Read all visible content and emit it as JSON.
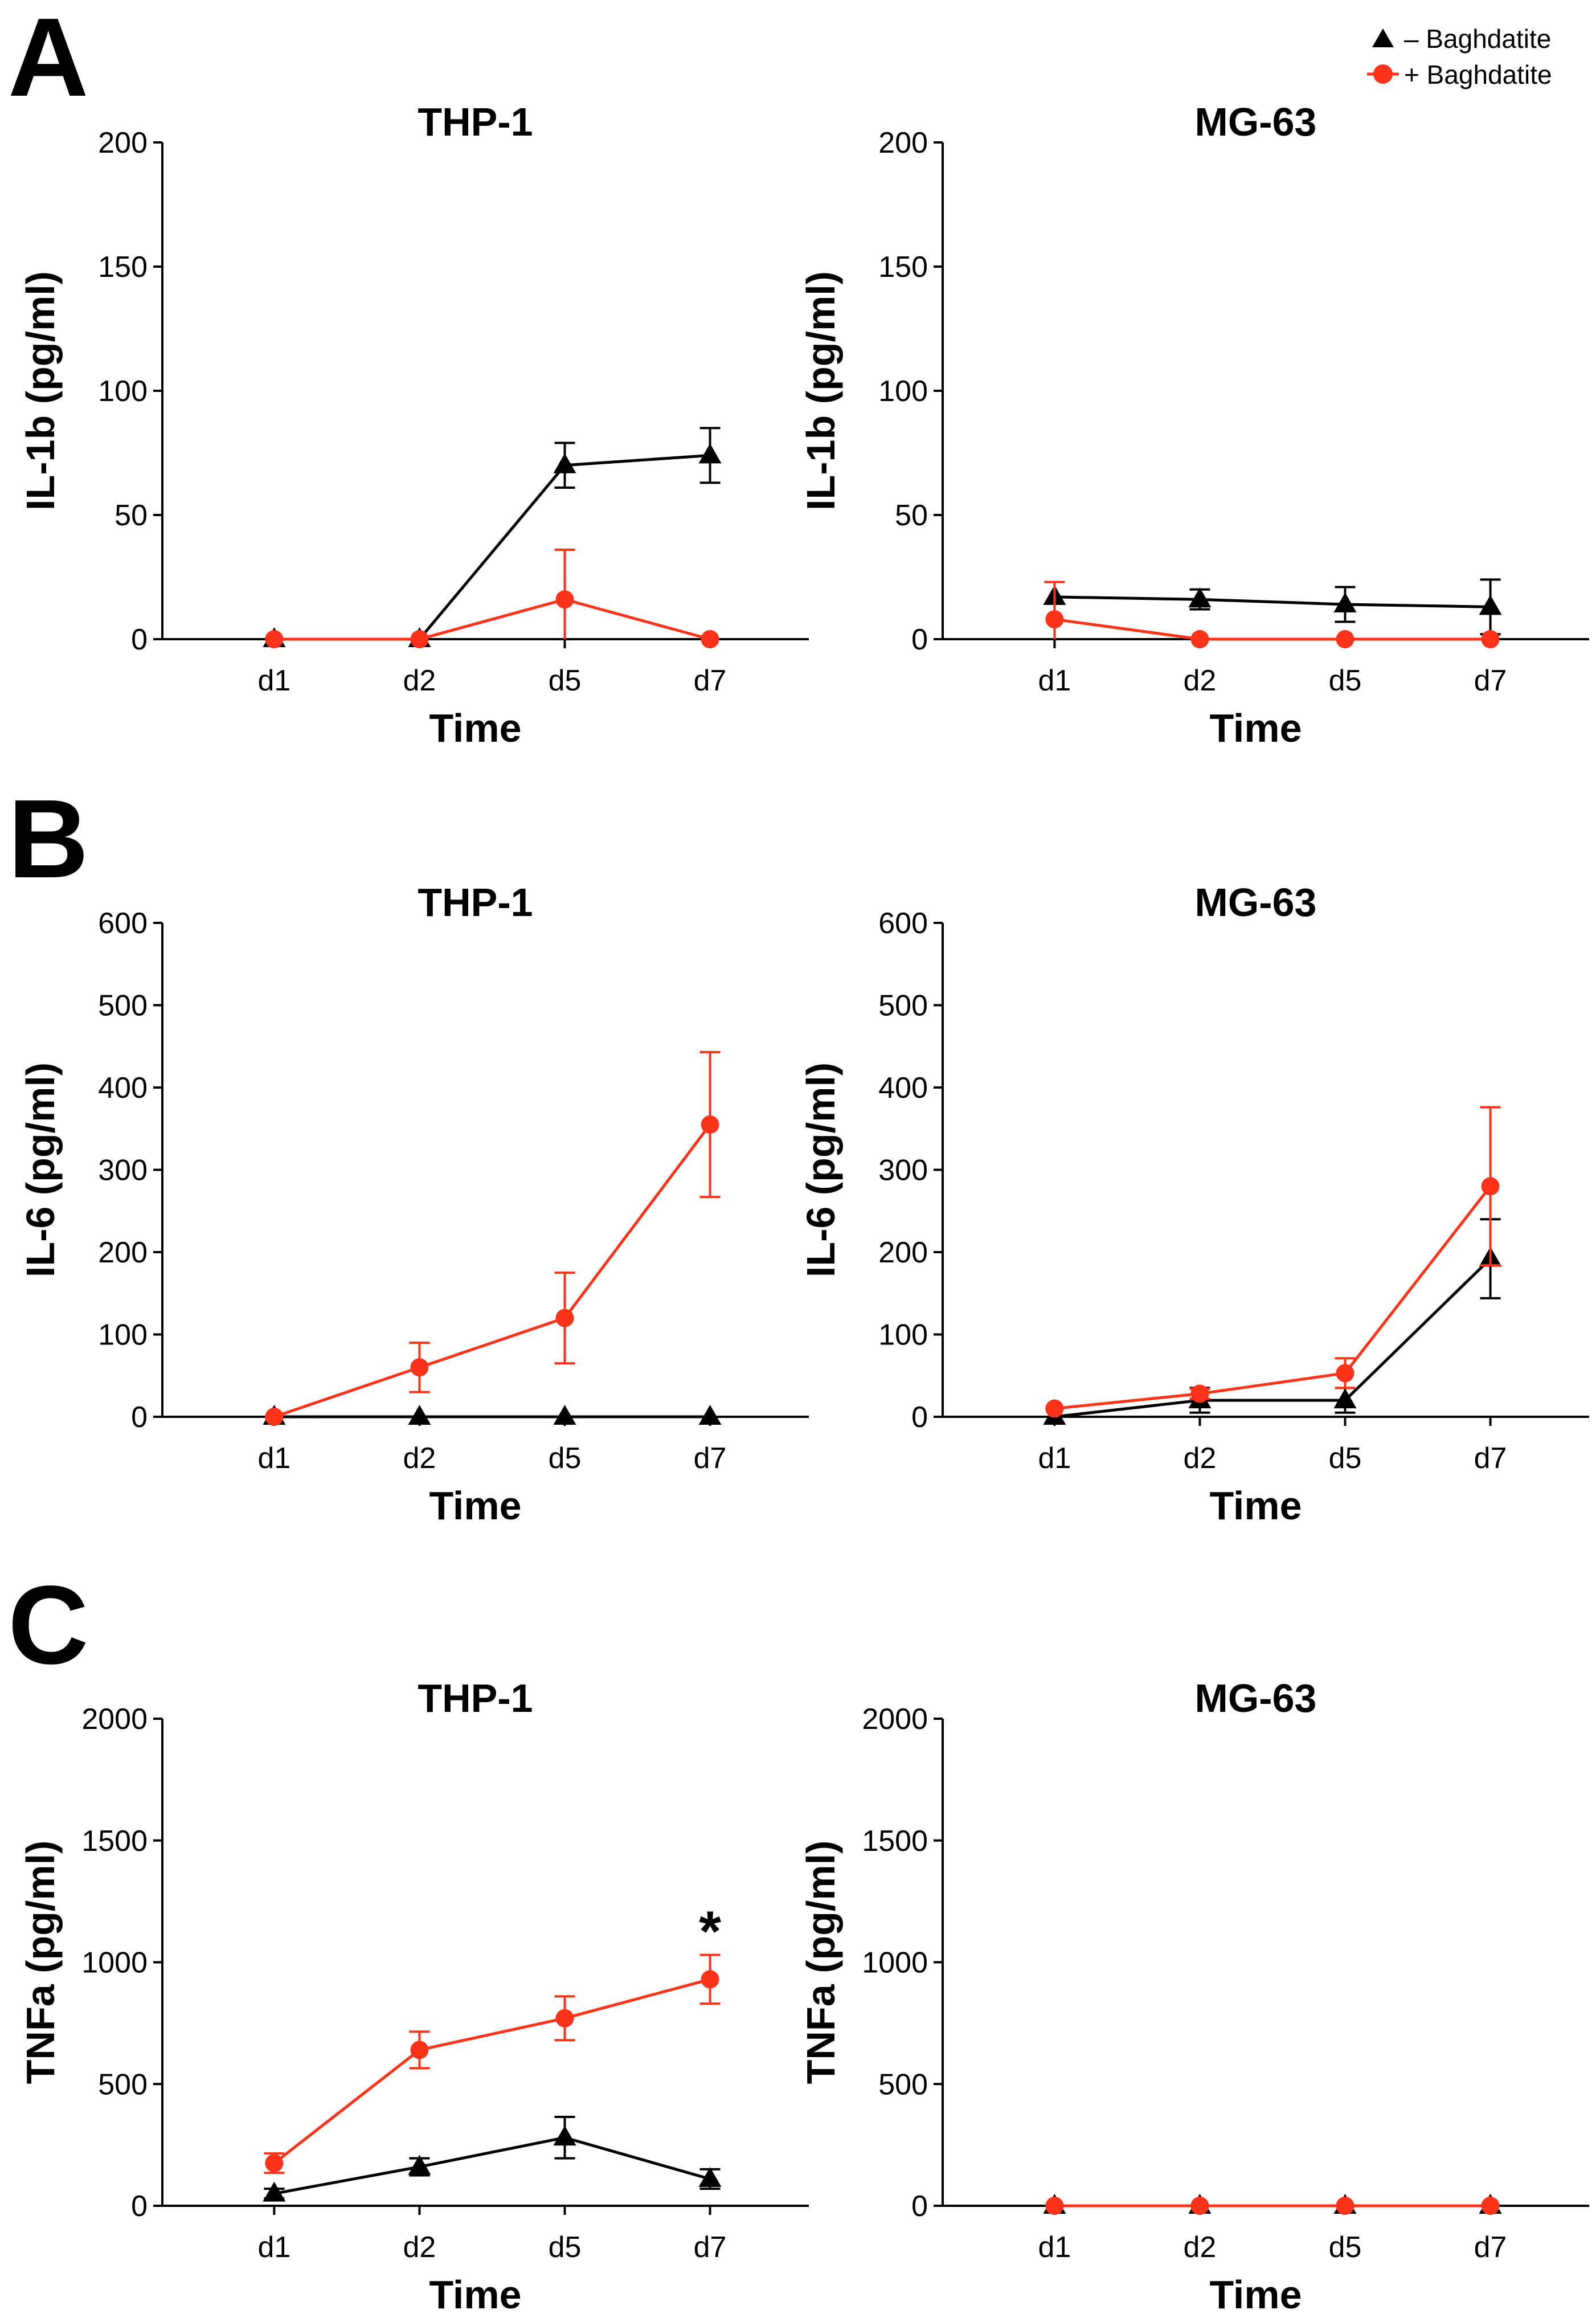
{
  "panels": [
    "A",
    "B",
    "C"
  ],
  "legend": {
    "placement": "top-right",
    "entries": [
      {
        "label": "– Baghdatite",
        "color": "#000000",
        "marker": "triangle"
      },
      {
        "label": "+ Baghdatite",
        "color": "#ff3319",
        "marker": "circle"
      }
    ]
  },
  "chart_data": [
    {
      "type": "line",
      "panel": "A",
      "title": "THP-1",
      "xlabel": "Time",
      "ylabel": "IL-1b (pg/ml)",
      "categories": [
        "d1",
        "d2",
        "d5",
        "d7"
      ],
      "ylim": [
        0,
        200
      ],
      "yticks": [
        0,
        50,
        100,
        150,
        200
      ],
      "series": [
        {
          "name": "– Baghdatite",
          "color": "#000000",
          "marker": "triangle",
          "values": [
            0,
            0,
            70,
            74
          ],
          "errors": [
            0,
            0,
            9,
            11
          ]
        },
        {
          "name": "+ Baghdatite",
          "color": "#ff3319",
          "marker": "circle",
          "values": [
            0,
            0,
            16,
            0
          ],
          "errors": [
            0,
            0,
            20,
            0
          ]
        }
      ],
      "annotations": []
    },
    {
      "type": "line",
      "panel": "A",
      "title": "MG-63",
      "xlabel": "Time",
      "ylabel": "IL-1b (pg/ml)",
      "categories": [
        "d1",
        "d2",
        "d5",
        "d7"
      ],
      "ylim": [
        0,
        200
      ],
      "yticks": [
        0,
        50,
        100,
        150,
        200
      ],
      "series": [
        {
          "name": "– Baghdatite",
          "color": "#000000",
          "marker": "triangle",
          "values": [
            17,
            16,
            14,
            13
          ],
          "errors": [
            0,
            4,
            7,
            11
          ]
        },
        {
          "name": "+ Baghdatite",
          "color": "#ff3319",
          "marker": "circle",
          "values": [
            8,
            0,
            0,
            0
          ],
          "errors": [
            15,
            0,
            0,
            0
          ]
        }
      ],
      "annotations": []
    },
    {
      "type": "line",
      "panel": "B",
      "title": "THP-1",
      "xlabel": "Time",
      "ylabel": "IL-6 (pg/ml)",
      "categories": [
        "d1",
        "d2",
        "d5",
        "d7"
      ],
      "ylim": [
        0,
        600
      ],
      "yticks": [
        0,
        100,
        200,
        300,
        400,
        500,
        600
      ],
      "series": [
        {
          "name": "– Baghdatite",
          "color": "#000000",
          "marker": "triangle",
          "values": [
            0,
            0,
            0,
            0
          ],
          "errors": [
            0,
            0,
            0,
            0
          ]
        },
        {
          "name": "+ Baghdatite",
          "color": "#ff3319",
          "marker": "circle",
          "values": [
            0,
            60,
            120,
            355
          ],
          "errors": [
            0,
            30,
            55,
            88
          ]
        }
      ],
      "annotations": []
    },
    {
      "type": "line",
      "panel": "B",
      "title": "MG-63",
      "xlabel": "Time",
      "ylabel": "IL-6 (pg/ml)",
      "categories": [
        "d1",
        "d2",
        "d5",
        "d7"
      ],
      "ylim": [
        0,
        600
      ],
      "yticks": [
        0,
        100,
        200,
        300,
        400,
        500,
        600
      ],
      "series": [
        {
          "name": "– Baghdatite",
          "color": "#000000",
          "marker": "triangle",
          "values": [
            0,
            20,
            20,
            192
          ],
          "errors": [
            0,
            15,
            15,
            48
          ]
        },
        {
          "name": "+ Baghdatite",
          "color": "#ff3319",
          "marker": "circle",
          "values": [
            10,
            28,
            53,
            280
          ],
          "errors": [
            0,
            6,
            18,
            96
          ]
        }
      ],
      "annotations": []
    },
    {
      "type": "line",
      "panel": "C",
      "title": "THP-1",
      "xlabel": "Time",
      "ylabel": "TNFa (pg/ml)",
      "categories": [
        "d1",
        "d2",
        "d5",
        "d7"
      ],
      "ylim": [
        0,
        2000
      ],
      "yticks": [
        0,
        500,
        1000,
        1500,
        2000
      ],
      "series": [
        {
          "name": "– Baghdatite",
          "color": "#000000",
          "marker": "triangle",
          "values": [
            50,
            160,
            280,
            110
          ],
          "errors": [
            20,
            35,
            85,
            40
          ]
        },
        {
          "name": "+ Baghdatite",
          "color": "#ff3319",
          "marker": "circle",
          "values": [
            175,
            640,
            770,
            930
          ],
          "errors": [
            40,
            75,
            90,
            100
          ]
        }
      ],
      "annotations": [
        {
          "text": "*",
          "category": "d7",
          "value": 1140
        }
      ]
    },
    {
      "type": "line",
      "panel": "C",
      "title": "MG-63",
      "xlabel": "Time",
      "ylabel": "TNFa (pg/ml)",
      "categories": [
        "d1",
        "d2",
        "d5",
        "d7"
      ],
      "ylim": [
        0,
        2000
      ],
      "yticks": [
        0,
        500,
        1000,
        1500,
        2000
      ],
      "series": [
        {
          "name": "– Baghdatite",
          "color": "#000000",
          "marker": "triangle",
          "values": [
            0,
            0,
            0,
            0
          ],
          "errors": [
            0,
            0,
            0,
            0
          ]
        },
        {
          "name": "+ Baghdatite",
          "color": "#ff3319",
          "marker": "circle",
          "values": [
            0,
            0,
            0,
            0
          ],
          "errors": [
            0,
            0,
            0,
            0
          ]
        }
      ],
      "annotations": []
    }
  ]
}
